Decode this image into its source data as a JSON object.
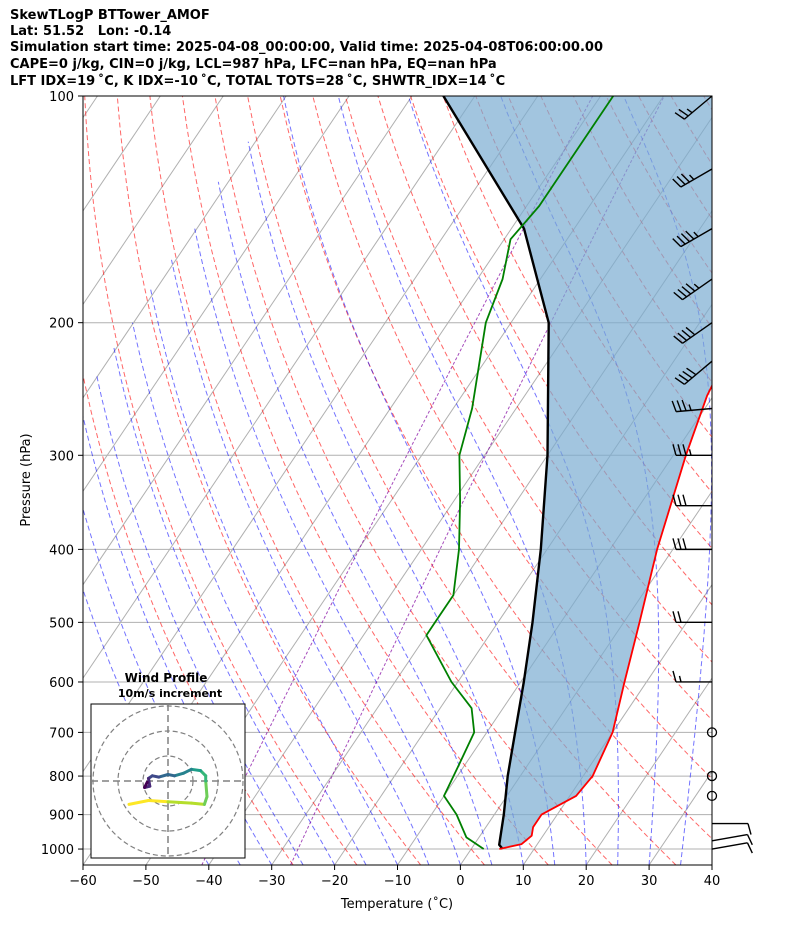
{
  "header": {
    "line1": "SkewTLogP BTTower_AMOF",
    "line2": "Lat: 51.52   Lon: -0.14",
    "line3": "Simulation start time: 2025-04-08_00:00:00, Valid time: 2025-04-08T06:00:00.00",
    "line4": "CAPE=0 j/kg, CIN=0 j/kg, LCL=987 hPa, LFC=nan hPa, EQ=nan hPa",
    "line5": "LFT IDX=19 ˚C, K IDX=-10 ˚C, TOTAL TOTS=28 ˚C, SHWTR_IDX=14 ˚C"
  },
  "chart_data": {
    "type": "line",
    "xlabel": "Temperature (˚C)",
    "ylabel": "Pressure (hPa)",
    "xlim": [
      -60,
      40
    ],
    "ylim": [
      1050,
      100
    ],
    "y_scale": "log",
    "x_ticks": [
      "−60",
      "−50",
      "−40",
      "−30",
      "−20",
      "−10",
      "0",
      "10",
      "20",
      "30",
      "40"
    ],
    "y_ticks": [
      "1000",
      "900",
      "800",
      "700",
      "600",
      "500",
      "400",
      "300",
      "200",
      "100"
    ],
    "grid": true,
    "series": [
      {
        "role": "temperature",
        "color": "#ff0000",
        "points": [
          [
            4.5,
            1000
          ],
          [
            7.5,
            985
          ],
          [
            8.2,
            960
          ],
          [
            7.5,
            935
          ],
          [
            7.5,
            900
          ],
          [
            11,
            850
          ],
          [
            11.5,
            800
          ],
          [
            10,
            700
          ],
          [
            6.5,
            600
          ],
          [
            2.5,
            500
          ],
          [
            -2.5,
            400
          ],
          [
            -8,
            300
          ],
          [
            -11,
            250
          ],
          [
            -13,
            200
          ],
          [
            -18,
            170
          ],
          [
            -19,
            150
          ],
          [
            -24,
            120
          ],
          [
            -28,
            100
          ]
        ]
      },
      {
        "role": "dewpoint",
        "color": "#008000",
        "points": [
          [
            2,
            1000
          ],
          [
            -2,
            965
          ],
          [
            -6,
            900
          ],
          [
            -10,
            850
          ],
          [
            -11,
            770
          ],
          [
            -12,
            700
          ],
          [
            -15,
            650
          ],
          [
            -21,
            600
          ],
          [
            -30,
            520
          ],
          [
            -30,
            500
          ],
          [
            -30,
            460
          ],
          [
            -34,
            400
          ],
          [
            -39,
            345
          ],
          [
            -44,
            300
          ],
          [
            -47,
            260
          ],
          [
            -54,
            200
          ],
          [
            -56,
            175
          ],
          [
            -59,
            155
          ],
          [
            -58,
            140
          ],
          [
            -58,
            100
          ]
        ]
      },
      {
        "role": "parcel",
        "color": "#000000",
        "points": [
          [
            5,
            1000
          ],
          [
            4,
            987
          ],
          [
            1.5,
            900
          ],
          [
            -2,
            800
          ],
          [
            -5.5,
            700
          ],
          [
            -9.5,
            600
          ],
          [
            -14.5,
            500
          ],
          [
            -21,
            400
          ],
          [
            -30,
            300
          ],
          [
            -44,
            200
          ],
          [
            -58,
            150
          ],
          [
            -85,
            100
          ]
        ]
      }
    ],
    "wind_barbs": [
      {
        "p": 100,
        "speed": 25,
        "dir": 230
      },
      {
        "p": 125,
        "speed": 35,
        "dir": 240
      },
      {
        "p": 150,
        "speed": 45,
        "dir": 240
      },
      {
        "p": 175,
        "speed": 45,
        "dir": 235
      },
      {
        "p": 200,
        "speed": 40,
        "dir": 235
      },
      {
        "p": 225,
        "speed": 40,
        "dir": 230
      },
      {
        "p": 260,
        "speed": 35,
        "dir": 265
      },
      {
        "p": 300,
        "speed": 35,
        "dir": 270
      },
      {
        "p": 350,
        "speed": 30,
        "dir": 270
      },
      {
        "p": 400,
        "speed": 30,
        "dir": 270
      },
      {
        "p": 500,
        "speed": 20,
        "dir": 270
      },
      {
        "p": 600,
        "speed": 15,
        "dir": 270
      },
      {
        "p": 700,
        "speed": 0,
        "dir": 0
      },
      {
        "p": 800,
        "speed": 0,
        "dir": 0
      },
      {
        "p": 850,
        "speed": 0,
        "dir": 0
      },
      {
        "p": 925,
        "speed": 10,
        "dir": 90
      },
      {
        "p": 975,
        "speed": 10,
        "dir": 80
      },
      {
        "p": 1000,
        "speed": 10,
        "dir": 80
      }
    ],
    "inset": {
      "title": "Wind Profile",
      "subtitle": "10m/s increment",
      "hodograph": [
        [
          -3,
          -1.8
        ],
        [
          -1.5,
          -1.5
        ],
        [
          0,
          -1.6
        ],
        [
          1.8,
          -1.7
        ],
        [
          2.8,
          -1.8
        ],
        [
          3,
          -1.2
        ],
        [
          2.9,
          0
        ],
        [
          2.9,
          0.4
        ],
        [
          2.5,
          0.8
        ],
        [
          1.8,
          0.9
        ],
        [
          1.2,
          0.6
        ],
        [
          0.5,
          0.4
        ],
        [
          0,
          0.5
        ],
        [
          -0.7,
          0.3
        ],
        [
          -1.2,
          0.4
        ],
        [
          -1.5,
          0.2
        ],
        [
          -1.4,
          -0.4
        ],
        [
          -1.8,
          -0.5
        ],
        [
          -1.6,
          -0.1
        ]
      ]
    }
  }
}
